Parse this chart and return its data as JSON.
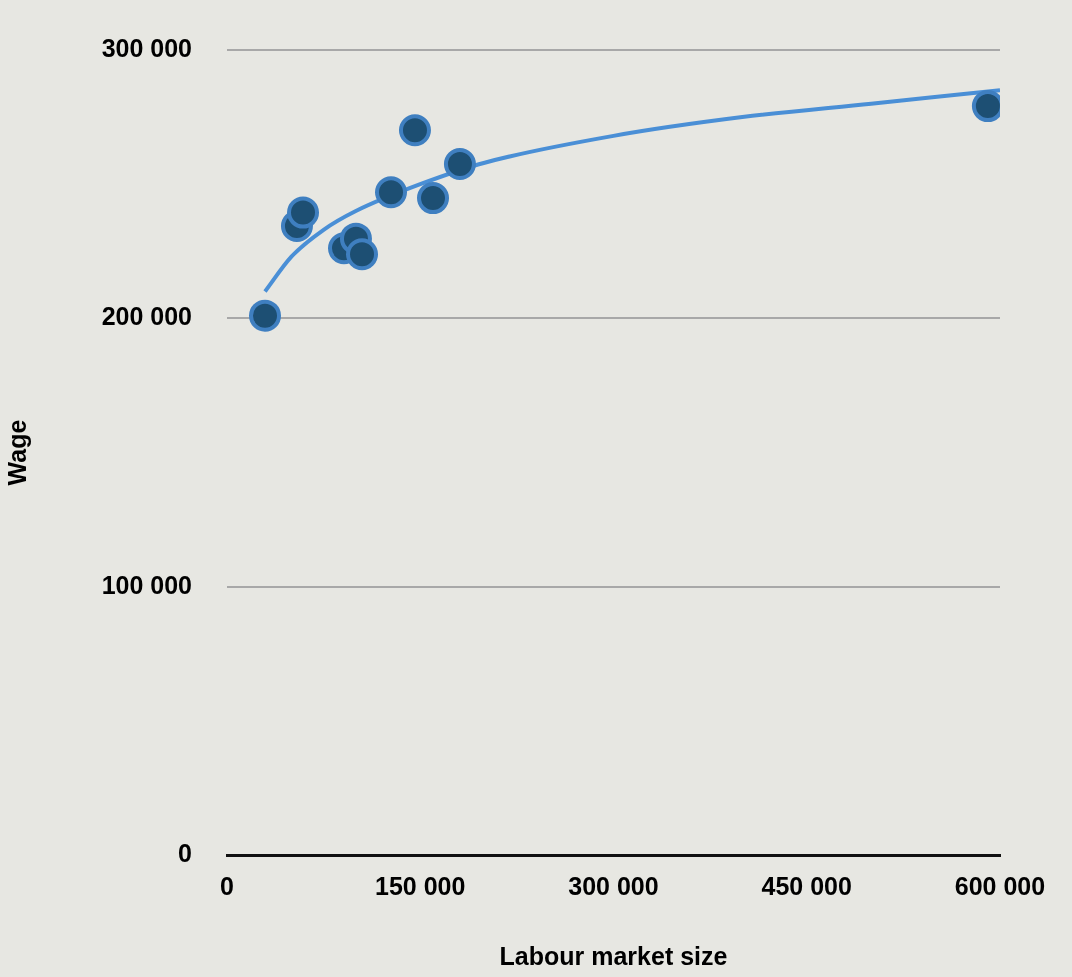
{
  "chart_data": {
    "type": "scatter",
    "xlabel": "Labour market size",
    "ylabel": "Wage",
    "xlim": [
      0,
      600000
    ],
    "xticks": [
      {
        "value": 0,
        "label": "0"
      },
      {
        "value": 150000,
        "label": "150 000"
      },
      {
        "value": 300000,
        "label": "300 000"
      },
      {
        "value": 450000,
        "label": "450 000"
      },
      {
        "value": 600000,
        "label": "600 000"
      }
    ],
    "ylim": [
      0,
      300000
    ],
    "yticks": [
      {
        "value": 0,
        "label": "0"
      },
      {
        "value": 100000,
        "label": "100 000"
      },
      {
        "value": 200000,
        "label": "200 000"
      },
      {
        "value": 300000,
        "label": "300 000"
      }
    ],
    "grid": "y",
    "legend": false,
    "series": [
      {
        "type": "scatter",
        "marker": "circle",
        "color": "#1d4f73",
        "x": [
          29500,
          54300,
          59000,
          90800,
          100100,
          104800,
          127300,
          145900,
          159900,
          180800,
          590600
        ],
        "values": [
          201000,
          234400,
          239400,
          226100,
          229700,
          223900,
          247000,
          270100,
          244800,
          257500,
          279100
        ]
      },
      {
        "type": "line",
        "marker": "none",
        "color": "#4a8fd6",
        "x": [
          29500,
          50000,
          75000,
          100000,
          150000,
          200000,
          300000,
          400000,
          500000,
          600000
        ],
        "values": [
          210000,
          223000,
          233000,
          240000,
          250000,
          258000,
          268000,
          275000,
          280000,
          285000
        ]
      }
    ]
  }
}
